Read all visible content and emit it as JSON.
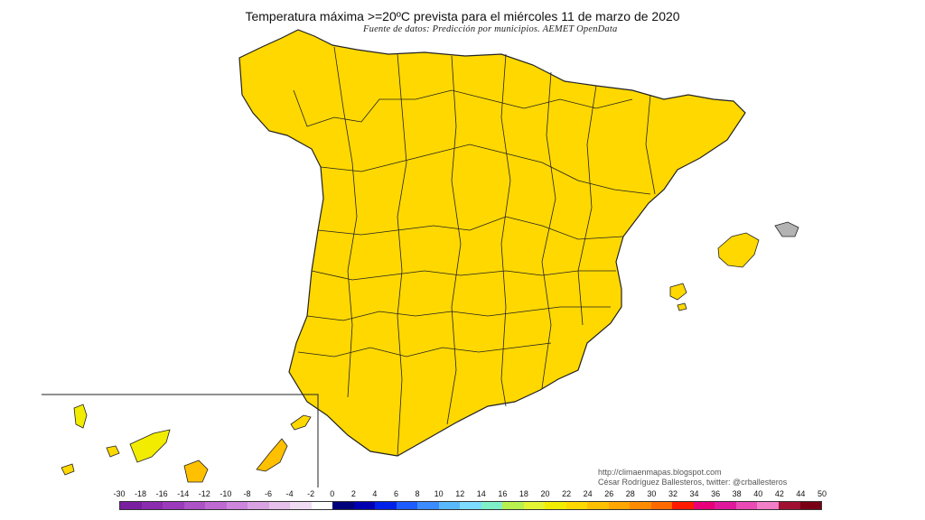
{
  "title": "Temperatura máxima >=20ºC prevista para el miércoles 11 de marzo de 2020",
  "subtitle": "Fuente de datos: Predicción por municipios. AEMET OpenData",
  "credits": {
    "line1": "http://climaenmapas.blogspot.com",
    "line2": "César Rodríguez Ballesteros, twitter: @crballesteros"
  },
  "legend": {
    "ticks": [
      "-30",
      "-18",
      "-16",
      "-14",
      "-12",
      "-10",
      "-8",
      "-6",
      "-4",
      "-2",
      "0",
      "2",
      "4",
      "6",
      "8",
      "10",
      "12",
      "14",
      "16",
      "18",
      "20",
      "22",
      "24",
      "26",
      "28",
      "30",
      "32",
      "34",
      "36",
      "38",
      "40",
      "42",
      "44",
      "50"
    ],
    "colors": [
      "#7a1fa0",
      "#8b2cae",
      "#9b3bbb",
      "#ad52c7",
      "#bf6ad2",
      "#cd86db",
      "#d9a3e3",
      "#e6c0eb",
      "#f0dcf2",
      "#ffffff",
      "#00007a",
      "#0000b0",
      "#0022e8",
      "#1e5cff",
      "#3c8cff",
      "#59b9ff",
      "#7ddcff",
      "#7ff0c8",
      "#b8f050",
      "#e4f434",
      "#f2ec00",
      "#ffd800",
      "#ffc000",
      "#ffa600",
      "#ff8c00",
      "#ff6a00",
      "#ff1a00",
      "#e8007a",
      "#e0189b",
      "#ea4ab4",
      "#f07ec8",
      "#a01030",
      "#7a0015"
    ]
  },
  "map_colors": {
    "no_data_gray": "#b3b3b3",
    "temp_20_22": "#d6f03a",
    "temp_22_24": "#f2ec00",
    "temp_24_26": "#ffd800",
    "temp_26_28": "#ffc000",
    "temp_28_30": "#ffa600",
    "temp_30_32": "#ff8c00",
    "border": "#222222"
  },
  "map_regions": [
    "peninsula",
    "balearic-islands",
    "canary-islands"
  ]
}
